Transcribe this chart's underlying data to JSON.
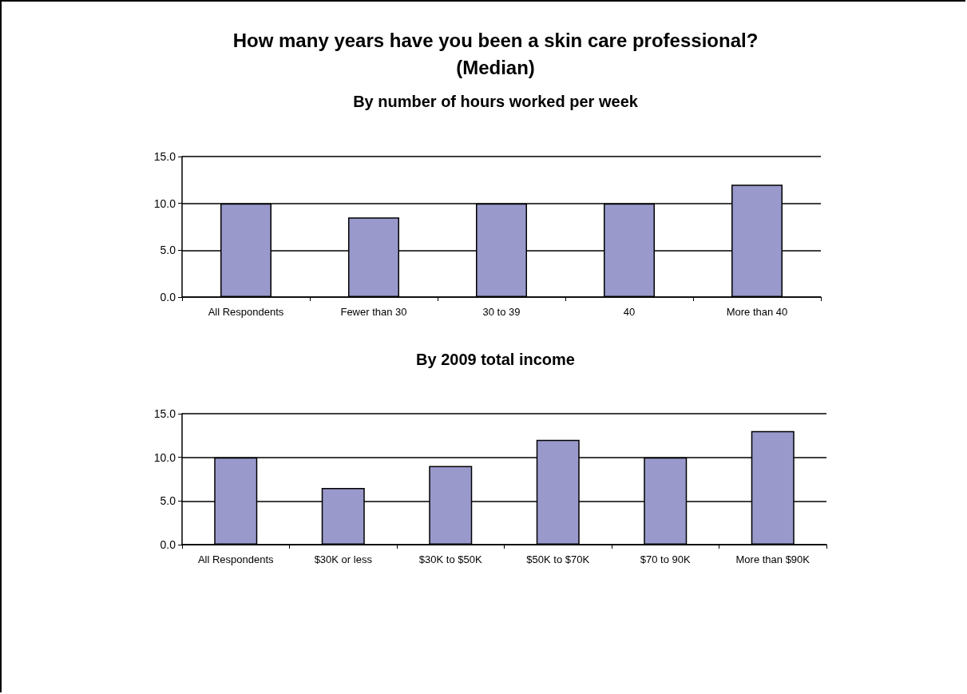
{
  "chart_data": [
    {
      "type": "bar",
      "title": "How many years have you been a skin care professional?\n(Median)",
      "subtitle": "By number of hours worked per week",
      "categories": [
        "All Respondents",
        "Fewer than 30",
        "30 to 39",
        "40",
        "More than 40"
      ],
      "values": [
        10,
        8.5,
        10,
        10,
        12
      ],
      "color": "#9999cc",
      "ylim": [
        0,
        15
      ],
      "yticks": [
        {
          "value": 0,
          "label": "0.0"
        },
        {
          "value": 5,
          "label": "5.0"
        },
        {
          "value": 10,
          "label": "10.0"
        },
        {
          "value": 15,
          "label": "15.0"
        }
      ],
      "grid": "y"
    },
    {
      "type": "bar",
      "title": "By 2009 total income",
      "categories": [
        "All Respondents",
        "$30K or less",
        "$30K to $50K",
        "$50K to $70K",
        "$70 to 90K",
        "More than $90K"
      ],
      "values": [
        10,
        6.5,
        9,
        12,
        10,
        13
      ],
      "color": "#9999cc",
      "ylim": [
        0,
        15
      ],
      "yticks": [
        {
          "value": 0,
          "label": "0.0"
        },
        {
          "value": 5,
          "label": "5.0"
        },
        {
          "value": 10,
          "label": "10.0"
        },
        {
          "value": 15,
          "label": "15.0"
        }
      ],
      "grid": "y"
    }
  ]
}
